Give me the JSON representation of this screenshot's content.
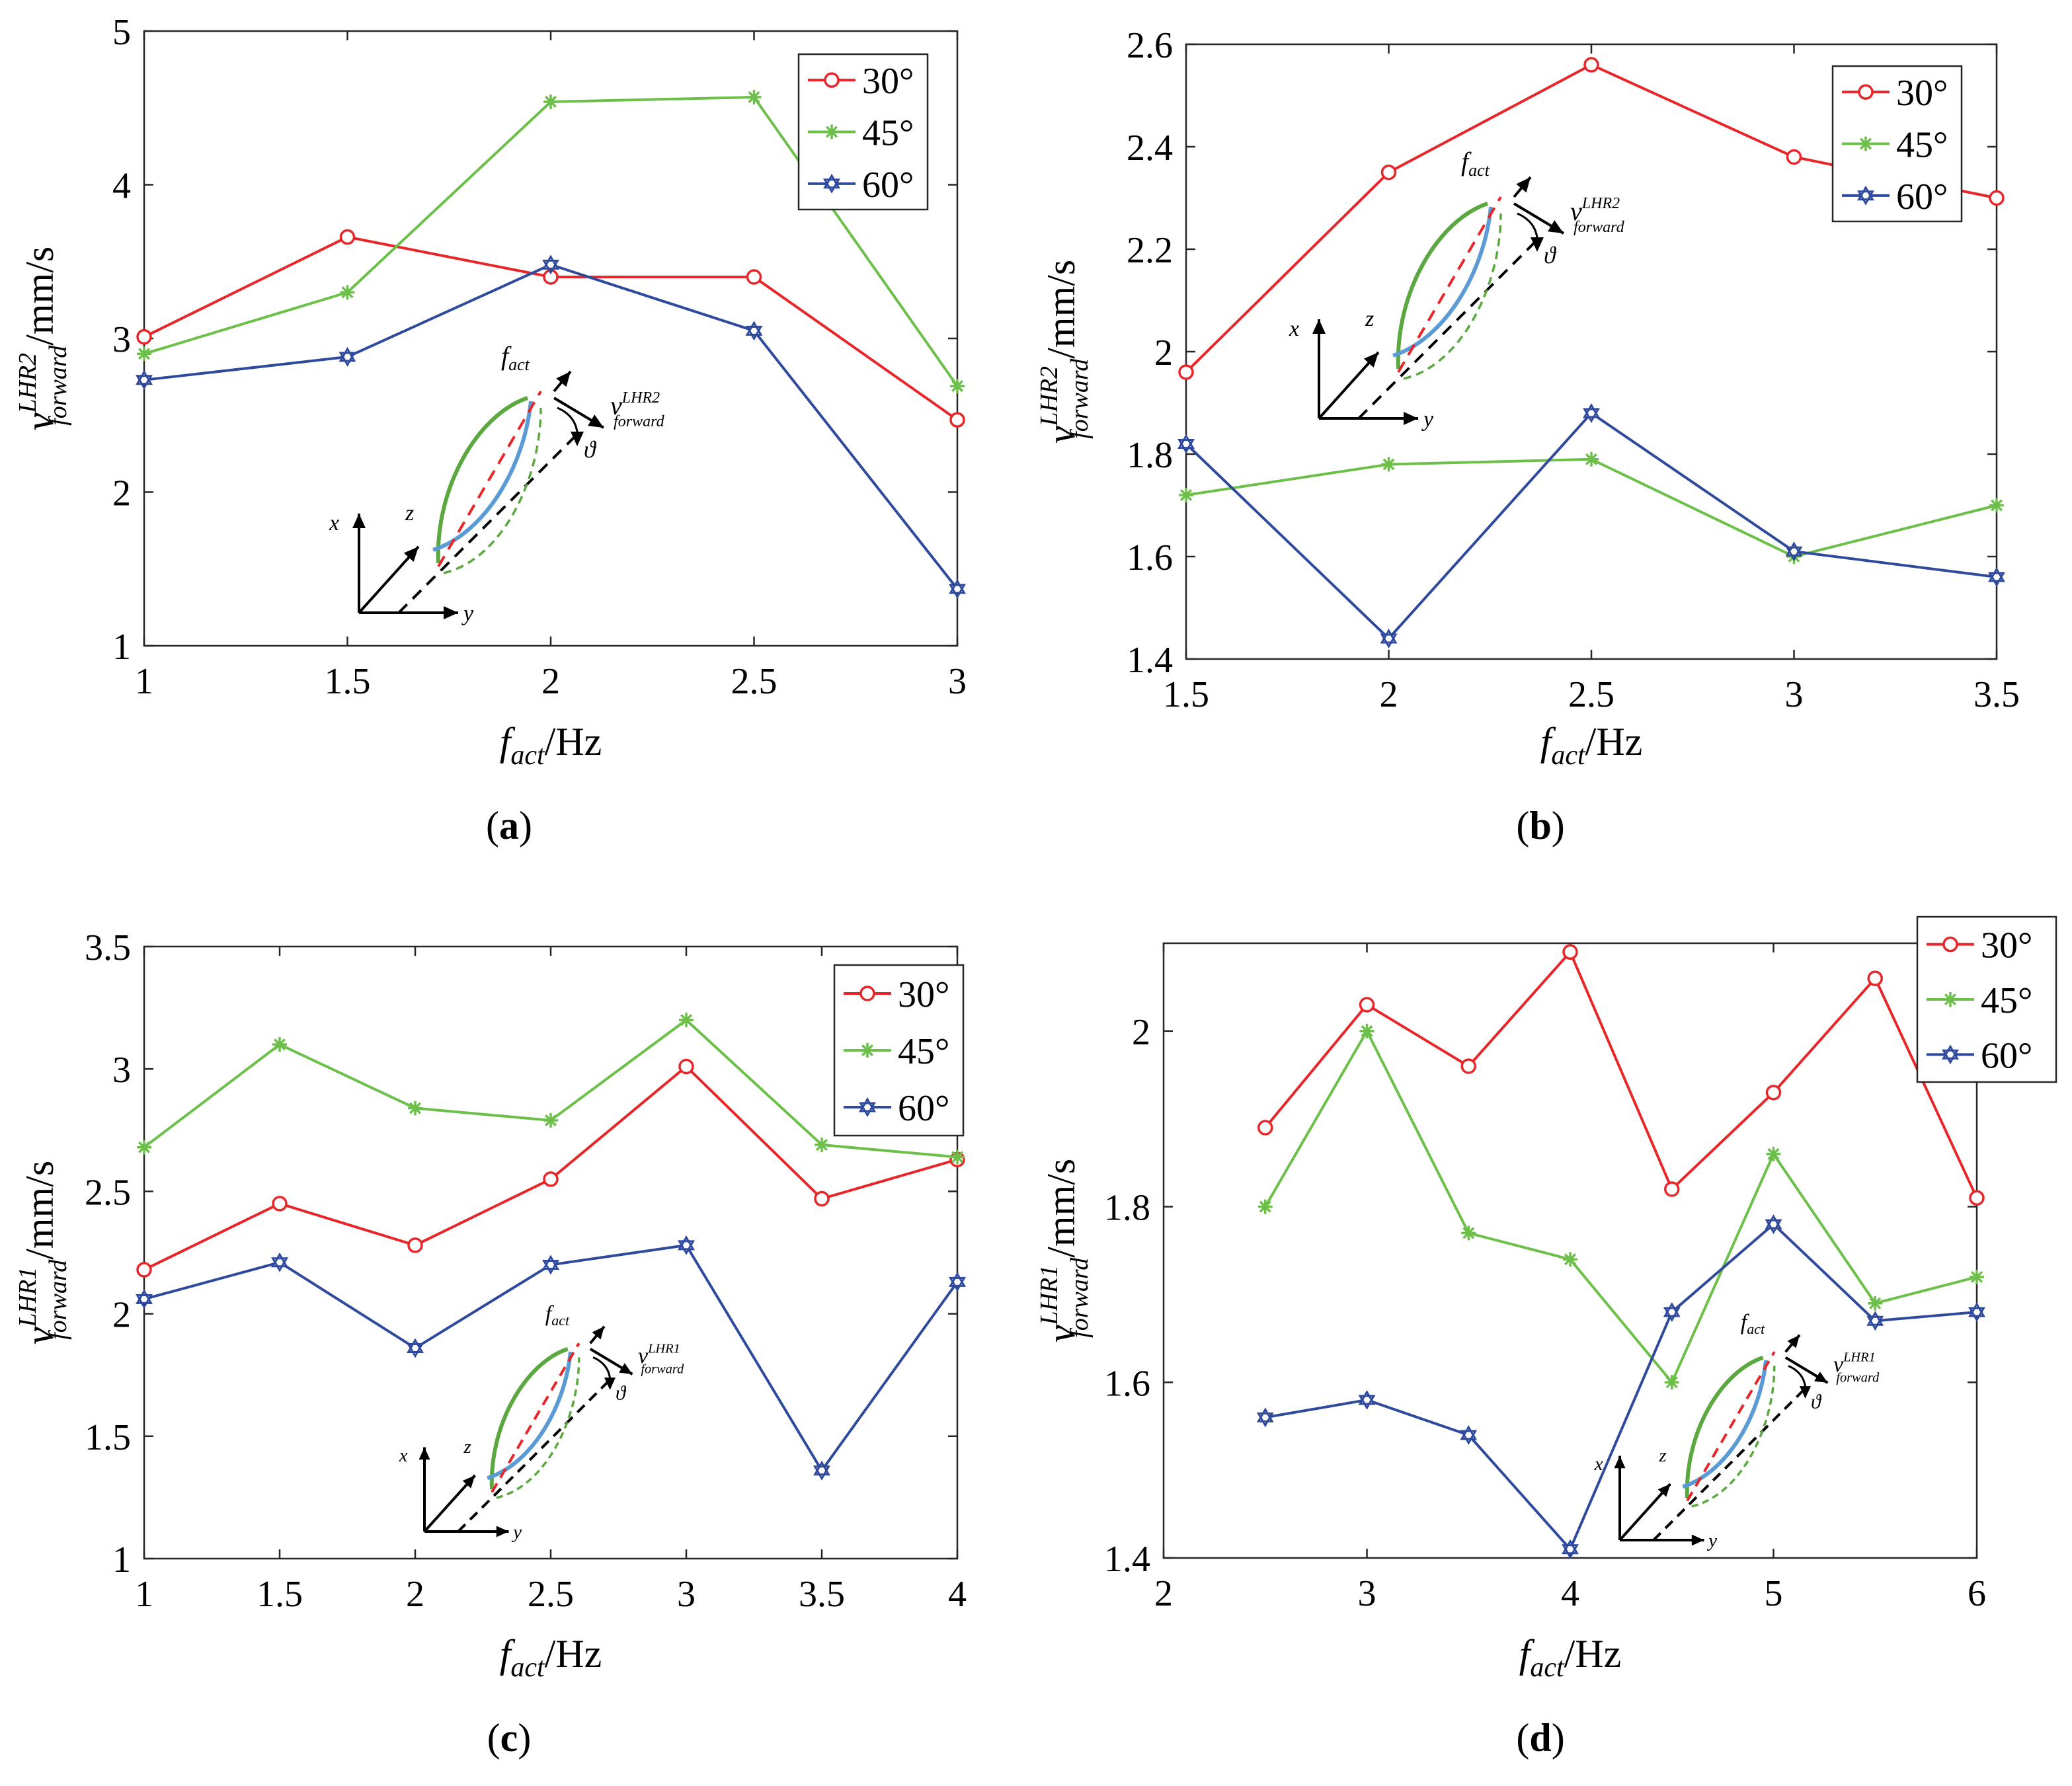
{
  "colors": {
    "s30": "#e8262a",
    "s45": "#6cc04a",
    "s60": "#2f4a9c",
    "axis": "#262626"
  },
  "legend_labels": [
    "30°",
    "45°",
    "60°"
  ],
  "units_suffix": "/mm/s",
  "x_units_suffix": "/Hz",
  "symbols": {
    "f": "f",
    "act": "act",
    "v": "v",
    "forward": "forward",
    "theta": "ϑ",
    "x": "x",
    "y": "y",
    "z": "z"
  },
  "chart_data": [
    {
      "type": "line",
      "panel": "a",
      "xlabel": "f_act/Hz",
      "ylabel": "v_forward^LHR2/mm/s",
      "y_super": "LHR2",
      "xlim": [
        1,
        3
      ],
      "ylim": [
        1,
        5
      ],
      "xticks": [
        1,
        1.5,
        2,
        2.5,
        3
      ],
      "xtick_labels": [
        "1",
        "1.5",
        "2",
        "2.5",
        "3"
      ],
      "yticks": [
        1,
        2,
        3,
        4,
        5
      ],
      "ytick_labels": [
        "1",
        "2",
        "3",
        "4",
        "5"
      ],
      "x": [
        1,
        1.5,
        2,
        2.5,
        3
      ],
      "series": [
        {
          "name": "30°",
          "values": [
            3.01,
            3.66,
            3.4,
            3.4,
            2.47
          ]
        },
        {
          "name": "45°",
          "values": [
            2.9,
            3.3,
            4.54,
            4.57,
            2.69
          ]
        },
        {
          "name": "60°",
          "values": [
            2.73,
            2.88,
            3.48,
            3.05,
            1.37
          ]
        }
      ],
      "legend": "top-right"
    },
    {
      "type": "line",
      "panel": "b",
      "xlabel": "f_act/Hz",
      "ylabel": "v_forward^LHR2/mm/s",
      "y_super": "LHR2",
      "xlim": [
        1.5,
        3.5
      ],
      "ylim": [
        1.4,
        2.6
      ],
      "xticks": [
        1.5,
        2,
        2.5,
        3,
        3.5
      ],
      "xtick_labels": [
        "1.5",
        "2",
        "2.5",
        "3",
        "3.5"
      ],
      "yticks": [
        1.4,
        1.6,
        1.8,
        2,
        2.2,
        2.4,
        2.6
      ],
      "ytick_labels": [
        "1.4",
        "1.6",
        "1.8",
        "2",
        "2.2",
        "2.4",
        "2.6"
      ],
      "x": [
        1.5,
        2,
        2.5,
        3,
        3.5
      ],
      "series": [
        {
          "name": "30°",
          "values": [
            1.96,
            2.35,
            2.56,
            2.38,
            2.3
          ]
        },
        {
          "name": "45°",
          "values": [
            1.72,
            1.78,
            1.79,
            1.6,
            1.7
          ]
        },
        {
          "name": "60°",
          "values": [
            1.82,
            1.44,
            1.88,
            1.61,
            1.56
          ]
        }
      ],
      "legend": "top-right"
    },
    {
      "type": "line",
      "panel": "c",
      "xlabel": "f_act/Hz",
      "ylabel": "v_forward^LHR1/mm/s",
      "y_super": "LHR1",
      "xlim": [
        1,
        4
      ],
      "ylim": [
        1,
        3.5
      ],
      "xticks": [
        1,
        1.5,
        2,
        2.5,
        3,
        3.5,
        4
      ],
      "xtick_labels": [
        "1",
        "1.5",
        "2",
        "2.5",
        "3",
        "3.5",
        "4"
      ],
      "yticks": [
        1,
        1.5,
        2,
        2.5,
        3,
        3.5
      ],
      "ytick_labels": [
        "1",
        "1.5",
        "2",
        "2.5",
        "3",
        "3.5"
      ],
      "x": [
        1,
        1.5,
        2,
        2.5,
        3,
        3.5,
        4
      ],
      "series": [
        {
          "name": "30°",
          "values": [
            2.18,
            2.45,
            2.28,
            2.55,
            3.01,
            2.47,
            2.63
          ]
        },
        {
          "name": "45°",
          "values": [
            2.68,
            3.1,
            2.84,
            2.79,
            3.2,
            2.69,
            2.64
          ]
        },
        {
          "name": "60°",
          "values": [
            2.06,
            2.21,
            1.86,
            2.2,
            2.28,
            1.36,
            2.13
          ]
        }
      ],
      "legend": "top-right"
    },
    {
      "type": "line",
      "panel": "d",
      "xlabel": "f_act/Hz",
      "ylabel": "v_forward^LHR1/mm/s",
      "y_super": "LHR1",
      "xlim": [
        2,
        6
      ],
      "ylim": [
        1.4,
        2.1
      ],
      "xticks": [
        2,
        3,
        4,
        5,
        6
      ],
      "xtick_labels": [
        "2",
        "3",
        "4",
        "5",
        "6"
      ],
      "yticks": [
        1.4,
        1.6,
        1.8,
        2
      ],
      "ytick_labels": [
        "1.4",
        "1.6",
        "1.8",
        "2"
      ],
      "x": [
        2.5,
        3,
        3.5,
        4,
        4.5,
        5,
        5.5,
        6
      ],
      "series": [
        {
          "name": "30°",
          "values": [
            1.89,
            2.03,
            1.96,
            2.09,
            1.82,
            1.93,
            2.06,
            1.81
          ]
        },
        {
          "name": "45°",
          "values": [
            1.8,
            2.0,
            1.77,
            1.74,
            1.6,
            1.86,
            1.69,
            1.72
          ]
        },
        {
          "name": "60°",
          "values": [
            1.56,
            1.58,
            1.54,
            1.41,
            1.68,
            1.78,
            1.67,
            1.68
          ]
        }
      ],
      "legend": "top-right"
    }
  ],
  "panel_labels": [
    "a",
    "b",
    "c",
    "d"
  ]
}
